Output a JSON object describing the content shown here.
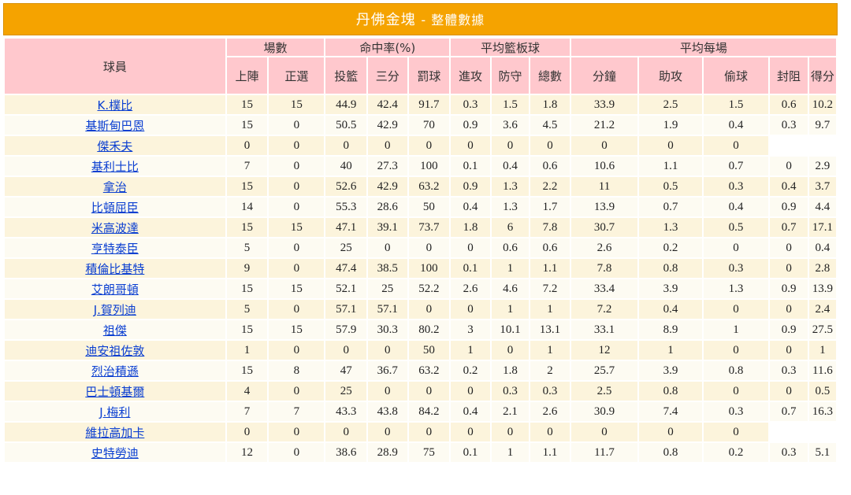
{
  "title": "丹佛金塊",
  "subtitle": "- 整體數據",
  "header": {
    "player": "球員",
    "groups": [
      "場數",
      "命中率(%)",
      "平均籃板球",
      "平均每場"
    ],
    "columns": [
      "上陣",
      "正選",
      "投籃",
      "三分",
      "罰球",
      "進攻",
      "防守",
      "總數",
      "分鐘",
      "助攻",
      "偷球",
      "封阻",
      "得分"
    ]
  },
  "players": [
    {
      "name": "K.樸比",
      "stats": [
        "15",
        "15",
        "44.9",
        "42.4",
        "91.7",
        "0.3",
        "1.5",
        "1.8",
        "33.9",
        "2.5",
        "1.5",
        "0.6",
        "10.2"
      ]
    },
    {
      "name": "基斯甸巴恩",
      "stats": [
        "15",
        "0",
        "50.5",
        "42.9",
        "70",
        "0.9",
        "3.6",
        "4.5",
        "21.2",
        "1.9",
        "0.4",
        "0.3",
        "9.7"
      ]
    },
    {
      "name": "傑禾夫",
      "stats": [
        "0",
        "0",
        "0",
        "0",
        "0",
        "0",
        "0",
        "0",
        "0",
        "0",
        "0",
        "",
        ""
      ]
    },
    {
      "name": "基利士比",
      "stats": [
        "7",
        "0",
        "40",
        "27.3",
        "100",
        "0.1",
        "0.4",
        "0.6",
        "10.6",
        "1.1",
        "0.7",
        "0",
        "2.9"
      ]
    },
    {
      "name": "拿治",
      "stats": [
        "15",
        "0",
        "52.6",
        "42.9",
        "63.2",
        "0.9",
        "1.3",
        "2.2",
        "11",
        "0.5",
        "0.3",
        "0.4",
        "3.7"
      ]
    },
    {
      "name": "比頓屈臣",
      "stats": [
        "14",
        "0",
        "55.3",
        "28.6",
        "50",
        "0.4",
        "1.3",
        "1.7",
        "13.9",
        "0.7",
        "0.4",
        "0.9",
        "4.4"
      ]
    },
    {
      "name": "米高波達",
      "stats": [
        "15",
        "15",
        "47.1",
        "39.1",
        "73.7",
        "1.8",
        "6",
        "7.8",
        "30.7",
        "1.3",
        "0.5",
        "0.7",
        "17.1"
      ]
    },
    {
      "name": "亨特泰臣",
      "stats": [
        "5",
        "0",
        "25",
        "0",
        "0",
        "0",
        "0.6",
        "0.6",
        "2.6",
        "0.2",
        "0",
        "0",
        "0.4"
      ]
    },
    {
      "name": "積倫比基特",
      "stats": [
        "9",
        "0",
        "47.4",
        "38.5",
        "100",
        "0.1",
        "1",
        "1.1",
        "7.8",
        "0.8",
        "0.3",
        "0",
        "2.8"
      ]
    },
    {
      "name": "艾朗哥頓",
      "stats": [
        "15",
        "15",
        "52.1",
        "25",
        "52.2",
        "2.6",
        "4.6",
        "7.2",
        "33.4",
        "3.9",
        "1.3",
        "0.9",
        "13.9"
      ]
    },
    {
      "name": "J.賀列迪",
      "stats": [
        "5",
        "0",
        "57.1",
        "57.1",
        "0",
        "0",
        "1",
        "1",
        "7.2",
        "0.4",
        "0",
        "0",
        "2.4"
      ]
    },
    {
      "name": "祖傑",
      "stats": [
        "15",
        "15",
        "57.9",
        "30.3",
        "80.2",
        "3",
        "10.1",
        "13.1",
        "33.1",
        "8.9",
        "1",
        "0.9",
        "27.5"
      ]
    },
    {
      "name": "迪安祖佐敦",
      "stats": [
        "1",
        "0",
        "0",
        "0",
        "50",
        "1",
        "0",
        "1",
        "12",
        "1",
        "0",
        "0",
        "1"
      ]
    },
    {
      "name": "烈治積遜",
      "stats": [
        "15",
        "8",
        "47",
        "36.7",
        "63.2",
        "0.2",
        "1.8",
        "2",
        "25.7",
        "3.9",
        "0.8",
        "0.3",
        "11.6"
      ]
    },
    {
      "name": "巴士頓基爾",
      "stats": [
        "4",
        "0",
        "25",
        "0",
        "0",
        "0",
        "0.3",
        "0.3",
        "2.5",
        "0.8",
        "0",
        "0",
        "0.5"
      ]
    },
    {
      "name": "J.梅利",
      "stats": [
        "7",
        "7",
        "43.3",
        "43.8",
        "84.2",
        "0.4",
        "2.1",
        "2.6",
        "30.9",
        "7.4",
        "0.3",
        "0.7",
        "16.3"
      ]
    },
    {
      "name": "維拉高加卡",
      "stats": [
        "0",
        "0",
        "0",
        "0",
        "0",
        "0",
        "0",
        "0",
        "0",
        "0",
        "0",
        "",
        ""
      ]
    },
    {
      "name": "史特勞迪",
      "stats": [
        "12",
        "0",
        "38.6",
        "28.9",
        "75",
        "0.1",
        "1",
        "1.1",
        "11.7",
        "0.8",
        "0.2",
        "0.3",
        "5.1"
      ]
    }
  ]
}
